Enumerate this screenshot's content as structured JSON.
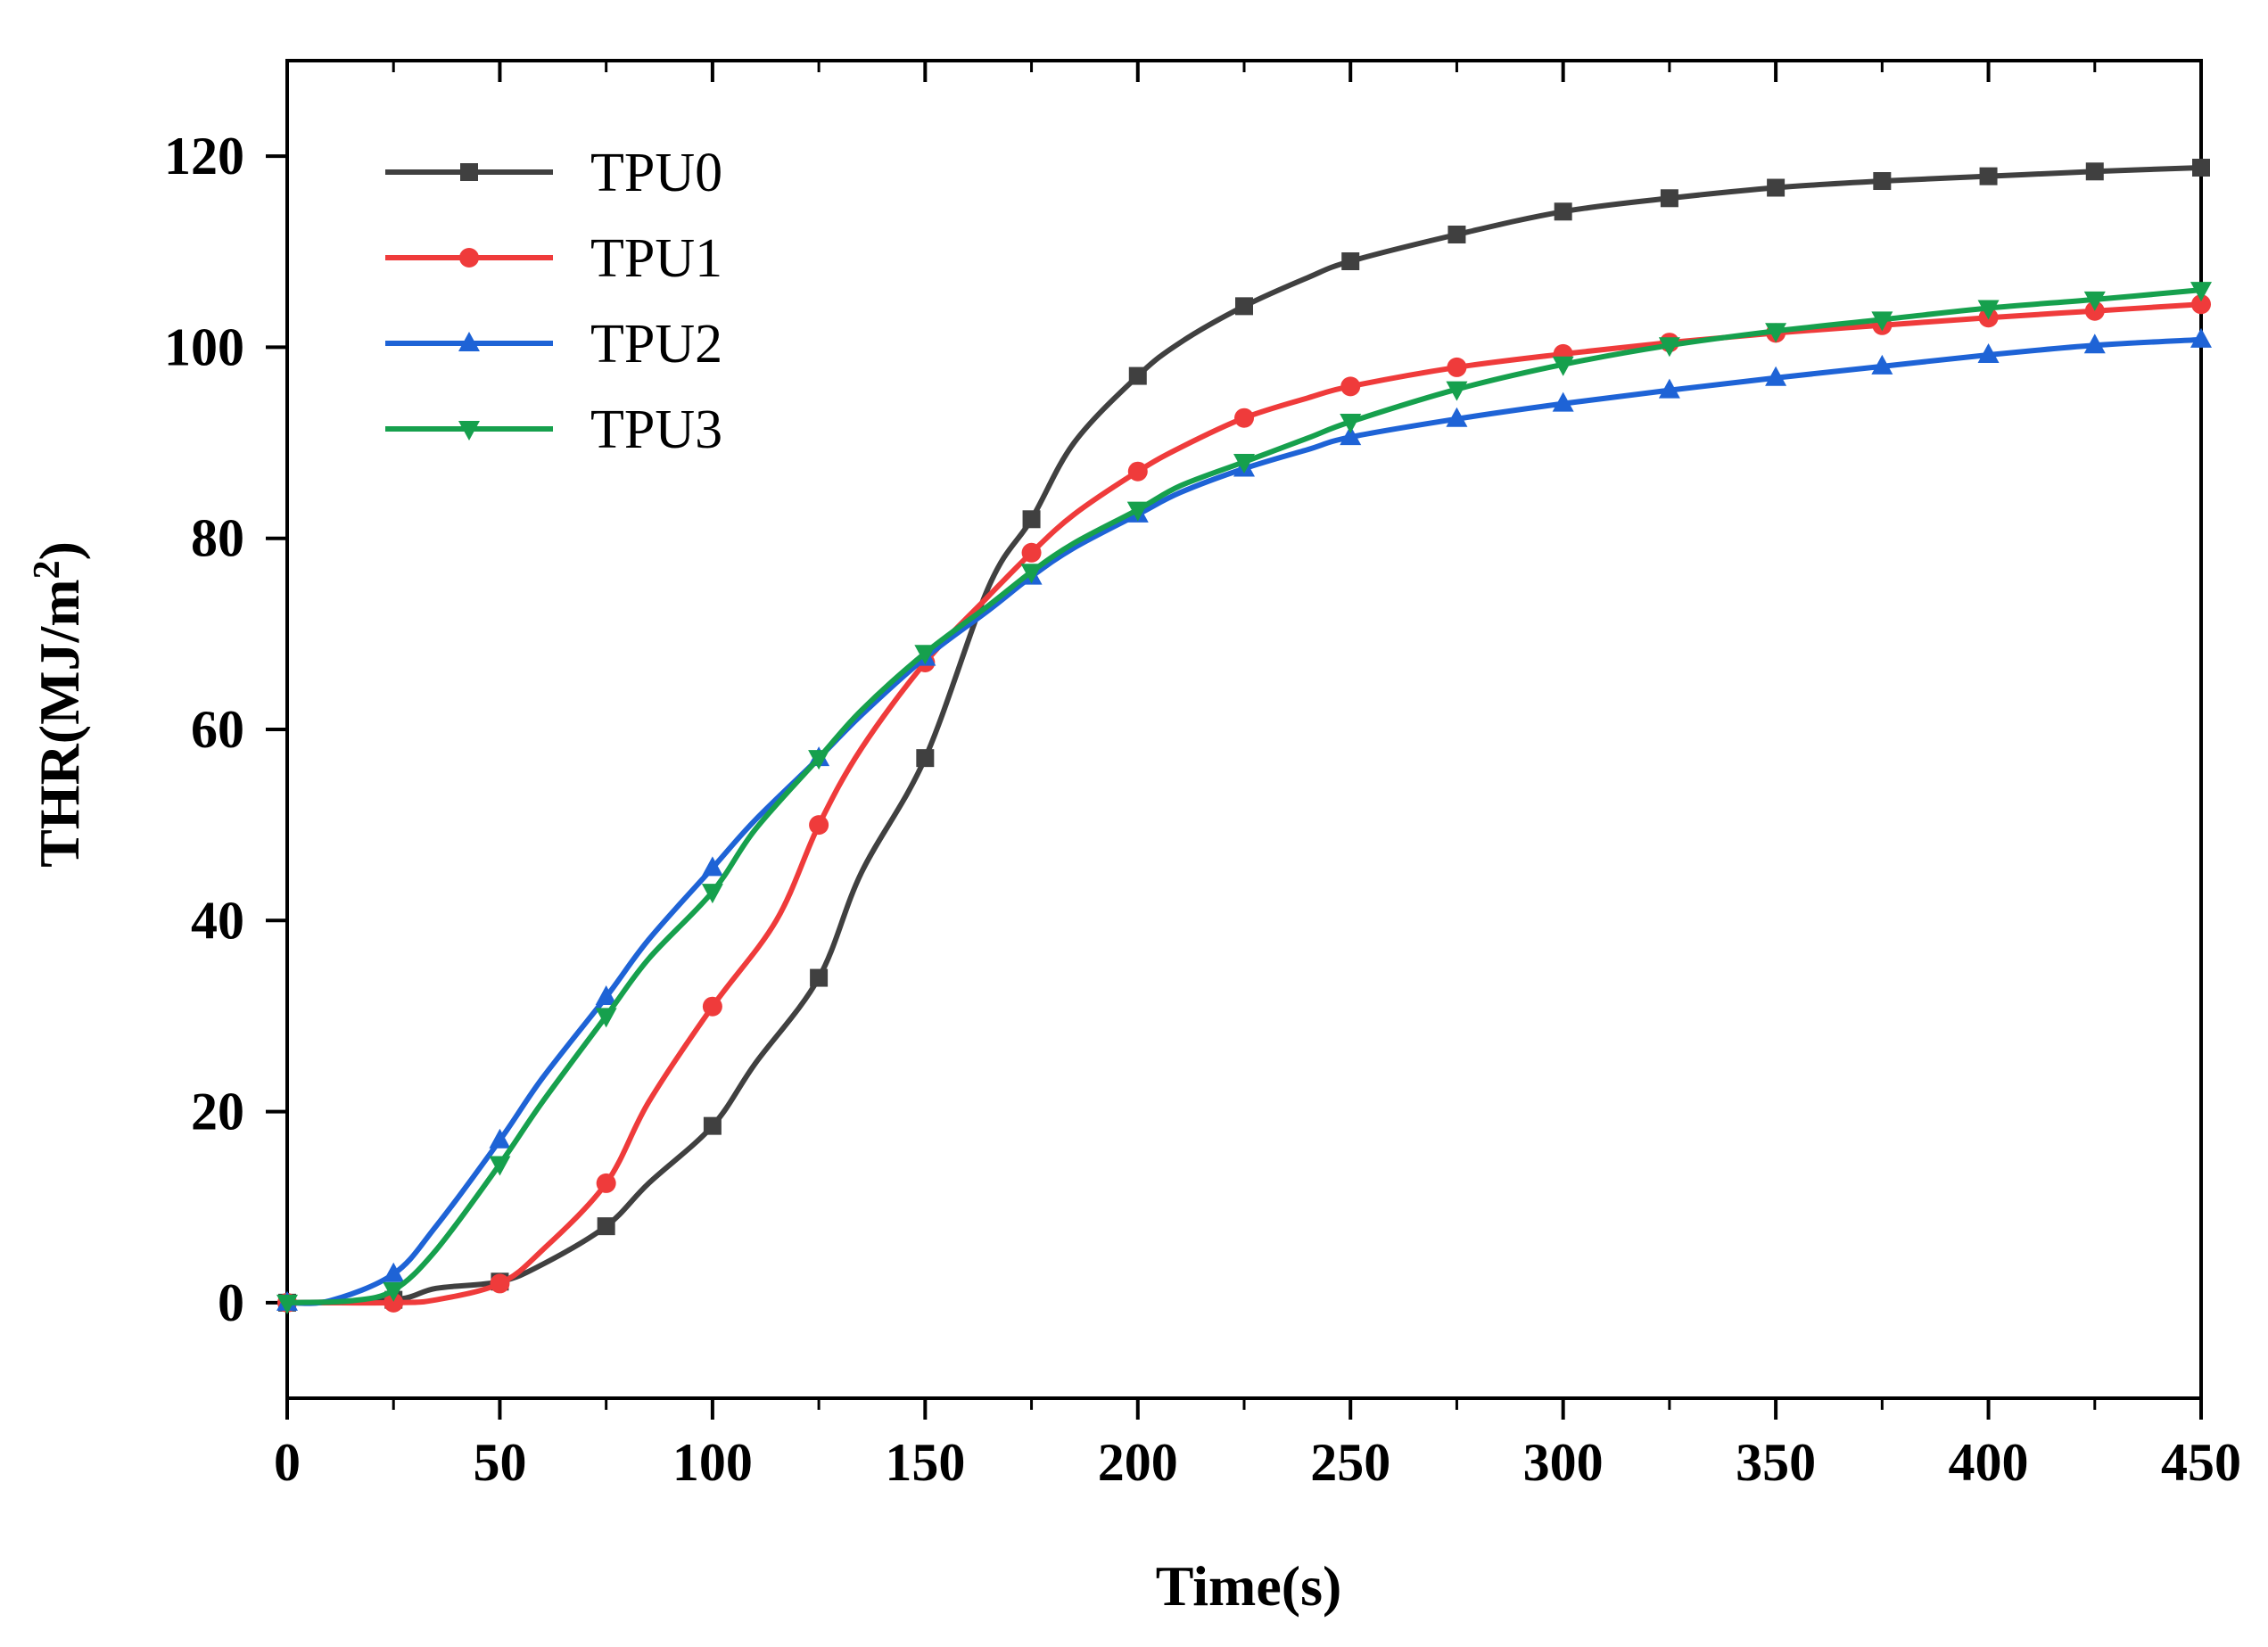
{
  "chart_data": {
    "type": "line",
    "title": "",
    "xlabel": "Time(s)",
    "ylabel": "THR(MJ/m",
    "ylabel_sup": "2",
    "ylabel_end": ")",
    "xlim": [
      0,
      450
    ],
    "ylim": [
      -10,
      130
    ],
    "xticks": [
      0,
      50,
      100,
      150,
      200,
      250,
      300,
      350,
      400,
      450
    ],
    "yticks": [
      0,
      20,
      40,
      60,
      80,
      100,
      120
    ],
    "grid": false,
    "legend_position": "top-left",
    "series": [
      {
        "name": "TPU0",
        "color": "#404040",
        "marker": "square",
        "x": [
          0,
          25,
          35,
          50,
          60,
          75,
          85,
          100,
          110,
          125,
          135,
          150,
          165,
          175,
          185,
          200,
          210,
          225,
          240,
          250,
          275,
          300,
          325,
          350,
          375,
          400,
          425,
          450
        ],
        "y": [
          0,
          0.3,
          1.5,
          2.2,
          4,
          8,
          12.5,
          18.5,
          25,
          34,
          45,
          57,
          75,
          82,
          90,
          97,
          100.5,
          104.3,
          107.3,
          109,
          111.8,
          114.2,
          115.6,
          116.7,
          117.4,
          117.9,
          118.4,
          118.8
        ]
      },
      {
        "name": "TPU1",
        "color": "#ef3b3b",
        "marker": "circle",
        "x": [
          0,
          25,
          35,
          50,
          60,
          75,
          85,
          100,
          115,
          125,
          135,
          150,
          165,
          175,
          185,
          200,
          210,
          225,
          240,
          250,
          275,
          300,
          325,
          350,
          375,
          400,
          425,
          450
        ],
        "y": [
          0,
          0,
          0.3,
          2,
          5.5,
          12.5,
          21,
          31,
          40,
          50,
          58,
          67,
          74,
          78.5,
          82.5,
          87,
          89.5,
          92.6,
          94.7,
          95.9,
          97.9,
          99.3,
          100.5,
          101.5,
          102.3,
          103.1,
          103.8,
          104.5
        ]
      },
      {
        "name": "TPU2",
        "color": "#1e63d6",
        "marker": "triangle-up",
        "x": [
          0,
          10,
          25,
          35,
          50,
          60,
          75,
          85,
          100,
          110,
          125,
          135,
          150,
          165,
          175,
          185,
          200,
          210,
          225,
          240,
          250,
          275,
          300,
          325,
          350,
          375,
          400,
          425,
          450
        ],
        "y": [
          0,
          0.2,
          3,
          8,
          17,
          23.5,
          32,
          38,
          45.5,
          50.5,
          57,
          61.5,
          67.5,
          72.5,
          76,
          79,
          82.5,
          84.8,
          87.3,
          89.3,
          90.6,
          92.5,
          94.1,
          95.5,
          96.8,
          98,
          99.2,
          100.2,
          100.8
        ]
      },
      {
        "name": "TPU3",
        "color": "#16a04d",
        "marker": "triangle-down",
        "x": [
          0,
          15,
          25,
          35,
          50,
          60,
          75,
          85,
          100,
          110,
          125,
          135,
          150,
          165,
          175,
          185,
          200,
          210,
          225,
          240,
          250,
          275,
          300,
          325,
          350,
          375,
          400,
          425,
          450
        ],
        "y": [
          0,
          0.2,
          1.3,
          5.5,
          14.5,
          21,
          30,
          36,
          43,
          49.5,
          57,
          62,
          68,
          73,
          76.5,
          79.5,
          83,
          85.5,
          88,
          90.5,
          92.2,
          95.6,
          98.2,
          100.2,
          101.7,
          102.9,
          104.1,
          105,
          106
        ]
      }
    ]
  }
}
